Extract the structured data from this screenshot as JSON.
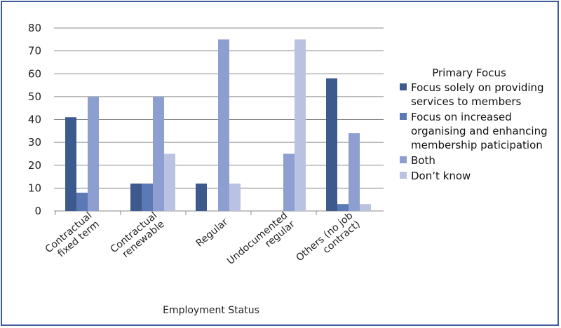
{
  "colors": {
    "frame": "#3e5d99",
    "gridline": "#8a8a8a",
    "series": [
      "#3d5a8e",
      "#5b79b5",
      "#8c9fd0",
      "#b9c3e1"
    ]
  },
  "chart_data": {
    "type": "bar",
    "title": "",
    "xlabel": "Employment Status",
    "ylabel": "",
    "ylim": [
      0,
      80
    ],
    "yticks": [
      0,
      10,
      20,
      30,
      40,
      50,
      60,
      70,
      80
    ],
    "grid": true,
    "legend_placement": "right",
    "legend_title": "Primary Focus",
    "categories": [
      [
        "Contractual",
        "fixed term"
      ],
      [
        "Contractual",
        "renewable"
      ],
      [
        "Regular"
      ],
      [
        "Undocumented",
        "regular"
      ],
      [
        "Others (no job",
        "contract)"
      ]
    ],
    "series": [
      {
        "name": [
          "Focus solely on providing",
          "services to members"
        ],
        "values": [
          41,
          12,
          12,
          0,
          58
        ]
      },
      {
        "name": [
          "Focus on increased",
          "organising and enhancing",
          "membership paticipation"
        ],
        "values": [
          8,
          12,
          0,
          0,
          3
        ]
      },
      {
        "name": [
          "Both"
        ],
        "values": [
          50,
          50,
          75,
          25,
          34
        ]
      },
      {
        "name": [
          "Don’t know"
        ],
        "values": [
          0,
          25,
          12,
          75,
          3
        ]
      }
    ]
  }
}
